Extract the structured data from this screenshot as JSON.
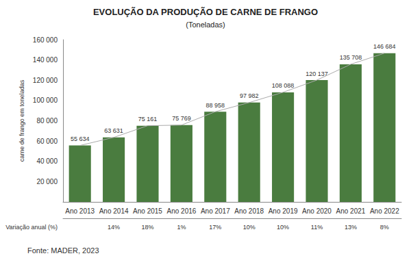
{
  "chart_data": {
    "type": "bar",
    "title": "EVOLUÇÃO DA PRODUÇÃO DE CARNE DE FRANGO",
    "subtitle": "(Toneladas)",
    "ylabel": "carne de frango em toneladas",
    "source": "Fonte: MADER, 2023",
    "variation_label": "Variação anual (%)",
    "variation": [
      null,
      "14%",
      "18%",
      "1%",
      "17%",
      "10%",
      "10%",
      "11%",
      "13%",
      "8%"
    ],
    "categories": [
      "Ano 2013",
      "Ano 2014",
      "Ano 2015",
      "Ano 2016",
      "Ano 2017",
      "Ano 2018",
      "Ano 2019",
      "Ano 2020",
      "Ano 2021",
      "Ano 2022"
    ],
    "series": [
      {
        "type": "bar",
        "color": "#4a7c3f",
        "values": [
          55634,
          63631,
          75161,
          75769,
          88958,
          97982,
          108088,
          120137,
          135708,
          146684
        ],
        "value_labels": [
          "55 634",
          "63 631",
          "75 161",
          "75 769",
          "88 958",
          "97 982",
          "108 088",
          "120 137",
          "135 708",
          "146 684"
        ]
      },
      {
        "type": "line",
        "color": "#aaaaaa",
        "values": [
          55634,
          63631,
          75161,
          75769,
          88958,
          97982,
          108088,
          120137,
          135708,
          146684
        ]
      }
    ],
    "data_labels": true,
    "ylim": [
      0,
      160000
    ],
    "yticks": [
      {
        "value": 20000,
        "label": "20 000"
      },
      {
        "value": 40000,
        "label": "40 000"
      },
      {
        "value": 60000,
        "label": "60 000"
      },
      {
        "value": 80000,
        "label": "80 000"
      },
      {
        "value": 100000,
        "label": "100 000"
      },
      {
        "value": 120000,
        "label": "120 000"
      },
      {
        "value": 140000,
        "label": "140 000"
      },
      {
        "value": 160000,
        "label": "160 000"
      }
    ],
    "grid": false
  }
}
